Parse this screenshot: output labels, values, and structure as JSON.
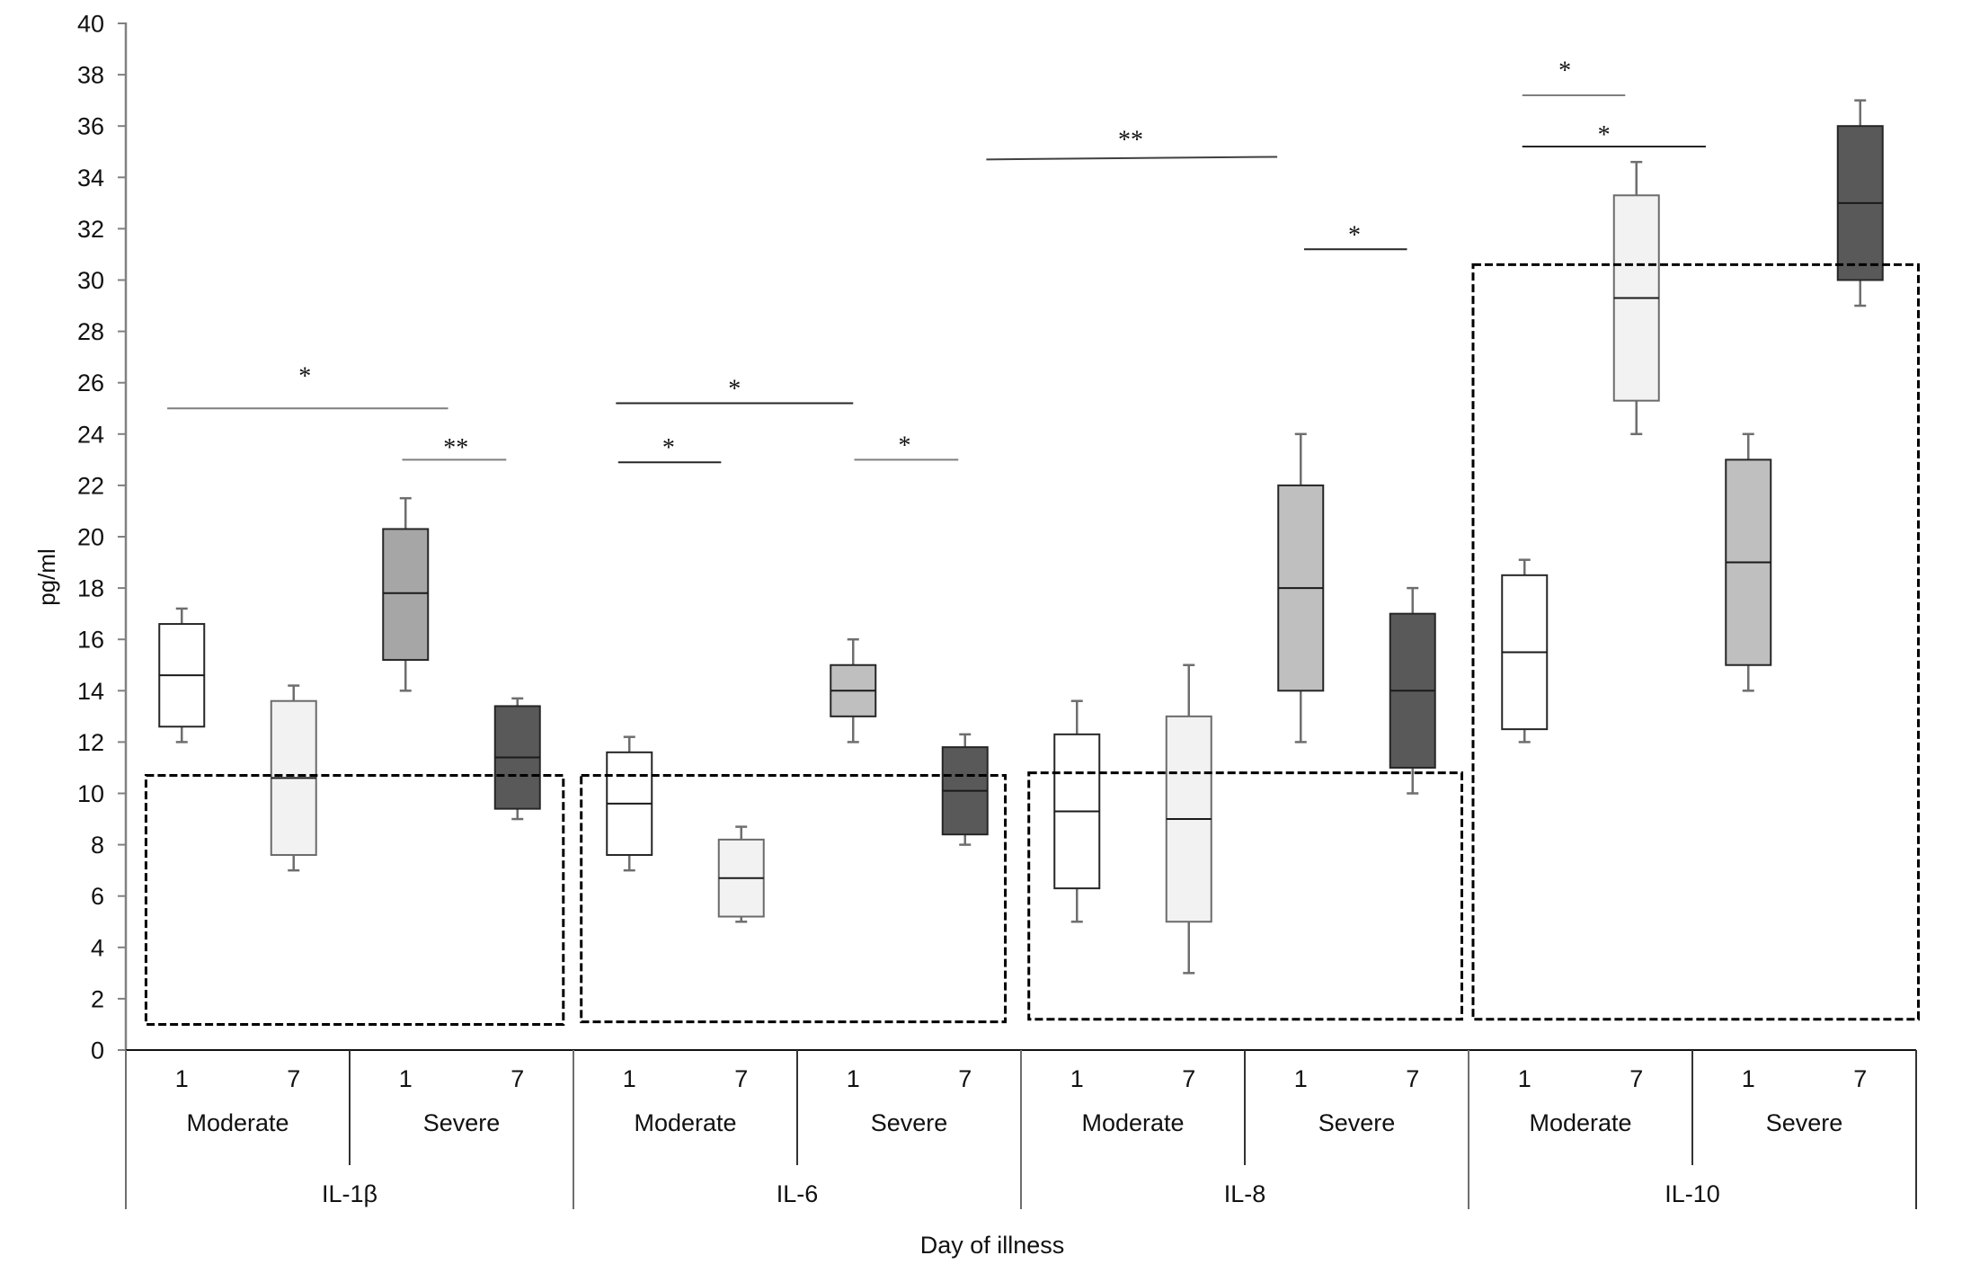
{
  "chart_data": {
    "type": "box",
    "title": "",
    "xlabel": "Day of illness",
    "ylabel": "pg/ml",
    "ylim": [
      0,
      40
    ],
    "yticks": [
      0,
      2,
      4,
      6,
      8,
      10,
      12,
      14,
      16,
      18,
      20,
      22,
      24,
      26,
      28,
      30,
      32,
      34,
      36,
      38,
      40
    ],
    "grid": false,
    "legend": "none",
    "groups": [
      {
        "label": "IL-1β",
        "subgroups": [
          {
            "label": "Moderate",
            "days": [
              "1",
              "7"
            ]
          },
          {
            "label": "Severe",
            "days": [
              "1",
              "7"
            ]
          }
        ]
      },
      {
        "label": "IL-6",
        "subgroups": [
          {
            "label": "Moderate",
            "days": [
              "1",
              "7"
            ]
          },
          {
            "label": "Severe",
            "days": [
              "1",
              "7"
            ]
          }
        ]
      },
      {
        "label": "IL-8",
        "subgroups": [
          {
            "label": "Moderate",
            "days": [
              "1",
              "7"
            ]
          },
          {
            "label": "Severe",
            "days": [
              "1",
              "7"
            ]
          }
        ]
      },
      {
        "label": "IL-10",
        "subgroups": [
          {
            "label": "Moderate",
            "days": [
              "1",
              "7"
            ]
          },
          {
            "label": "Severe",
            "days": [
              "1",
              "7"
            ]
          }
        ]
      }
    ],
    "boxes": [
      {
        "cytokine": "IL-1β",
        "severity": "Moderate",
        "day": "1",
        "min": 12.0,
        "q1": 12.6,
        "median": 14.6,
        "q3": 16.6,
        "max": 17.2,
        "fill": "#ffffff"
      },
      {
        "cytokine": "IL-1β",
        "severity": "Moderate",
        "day": "7",
        "min": 7.0,
        "q1": 7.6,
        "median": 10.6,
        "q3": 13.6,
        "max": 14.2,
        "fill": "#f2f2f2"
      },
      {
        "cytokine": "IL-1β",
        "severity": "Severe",
        "day": "1",
        "min": 14.0,
        "q1": 15.2,
        "median": 17.8,
        "q3": 20.3,
        "max": 21.5,
        "fill": "#a6a6a6"
      },
      {
        "cytokine": "IL-1β",
        "severity": "Severe",
        "day": "7",
        "min": 9.0,
        "q1": 9.4,
        "median": 11.4,
        "q3": 13.4,
        "max": 13.7,
        "fill": "#595959"
      },
      {
        "cytokine": "IL-6",
        "severity": "Moderate",
        "day": "1",
        "min": 7.0,
        "q1": 7.6,
        "median": 9.6,
        "q3": 11.6,
        "max": 12.2,
        "fill": "#ffffff"
      },
      {
        "cytokine": "IL-6",
        "severity": "Moderate",
        "day": "7",
        "min": 5.0,
        "q1": 5.2,
        "median": 6.7,
        "q3": 8.2,
        "max": 8.7,
        "fill": "#f2f2f2"
      },
      {
        "cytokine": "IL-6",
        "severity": "Severe",
        "day": "1",
        "min": 12.0,
        "q1": 13.0,
        "median": 14.0,
        "q3": 15.0,
        "max": 16.0,
        "fill": "#bfbfbf"
      },
      {
        "cytokine": "IL-6",
        "severity": "Severe",
        "day": "7",
        "min": 8.0,
        "q1": 8.4,
        "median": 10.1,
        "q3": 11.8,
        "max": 12.3,
        "fill": "#595959"
      },
      {
        "cytokine": "IL-8",
        "severity": "Moderate",
        "day": "1",
        "min": 5.0,
        "q1": 6.3,
        "median": 9.3,
        "q3": 12.3,
        "max": 13.6,
        "fill": "#ffffff"
      },
      {
        "cytokine": "IL-8",
        "severity": "Moderate",
        "day": "7",
        "min": 3.0,
        "q1": 5.0,
        "median": 9.0,
        "q3": 13.0,
        "max": 15.0,
        "fill": "#f2f2f2"
      },
      {
        "cytokine": "IL-8",
        "severity": "Severe",
        "day": "1",
        "min": 12.0,
        "q1": 14.0,
        "median": 18.0,
        "q3": 22.0,
        "max": 24.0,
        "fill": "#bfbfbf"
      },
      {
        "cytokine": "IL-8",
        "severity": "Severe",
        "day": "7",
        "min": 10.0,
        "q1": 11.0,
        "median": 14.0,
        "q3": 17.0,
        "max": 18.0,
        "fill": "#595959"
      },
      {
        "cytokine": "IL-10",
        "severity": "Moderate",
        "day": "1",
        "min": 12.0,
        "q1": 12.5,
        "median": 15.5,
        "q3": 18.5,
        "max": 19.1,
        "fill": "#ffffff"
      },
      {
        "cytokine": "IL-10",
        "severity": "Moderate",
        "day": "7",
        "min": 24.0,
        "q1": 25.3,
        "median": 29.3,
        "q3": 33.3,
        "max": 34.6,
        "fill": "#f2f2f2"
      },
      {
        "cytokine": "IL-10",
        "severity": "Severe",
        "day": "1",
        "min": 14.0,
        "q1": 15.0,
        "median": 19.0,
        "q3": 23.0,
        "max": 24.0,
        "fill": "#bfbfbf"
      },
      {
        "cytokine": "IL-10",
        "severity": "Severe",
        "day": "7",
        "min": 29.0,
        "q1": 30.0,
        "median": 33.0,
        "q3": 36.0,
        "max": 37.0,
        "fill": "#595959"
      }
    ],
    "significance": [
      {
        "label": "*",
        "y": 25.0,
        "x_range": [
          -0.13,
          2.38
        ],
        "label_x": 1.1,
        "label_y": 26.4,
        "color": "#7f7f7f"
      },
      {
        "label": "**",
        "y": 23.0,
        "x_range": [
          1.97,
          2.9
        ],
        "label_x": 2.45,
        "label_y": 23.6,
        "color": "#7f7f7f"
      },
      {
        "label": "*",
        "y": 25.2,
        "x_range": [
          3.88,
          6.0
        ],
        "label_x": 4.94,
        "label_y": 25.9,
        "color": "#262626"
      },
      {
        "label": "*",
        "y": 22.9,
        "x_range": [
          3.9,
          4.82
        ],
        "label_x": 4.35,
        "label_y": 23.6,
        "color": "#262626"
      },
      {
        "label": "*",
        "y": 23.0,
        "x_range": [
          6.01,
          6.94
        ],
        "label_x": 6.46,
        "label_y": 23.7,
        "color": "#7f7f7f"
      },
      {
        "label": "**",
        "y": 34.7,
        "y_end": 34.8,
        "x_range": [
          7.19,
          9.79
        ],
        "label_x": 8.48,
        "label_y": 35.6,
        "color": "#404040"
      },
      {
        "label": "*",
        "y": 31.2,
        "x_range": [
          10.03,
          10.95
        ],
        "label_x": 10.48,
        "label_y": 31.9,
        "color": "#262626"
      },
      {
        "label": "*",
        "y": 37.2,
        "x_range": [
          11.98,
          12.9
        ],
        "label_x": 12.36,
        "label_y": 38.3,
        "color": "#7f7f7f"
      },
      {
        "label": "*",
        "y": 35.2,
        "x_range": [
          11.98,
          13.62
        ],
        "label_x": 12.71,
        "label_y": 35.8,
        "color": "#262626"
      }
    ],
    "reference_ranges": [
      {
        "cytokine": "IL-1β",
        "y_range": [
          1.0,
          10.7
        ],
        "x_range": [
          -0.32,
          3.41
        ]
      },
      {
        "cytokine": "IL-6",
        "y_range": [
          1.1,
          10.7
        ],
        "x_range": [
          3.57,
          7.36
        ]
      },
      {
        "cytokine": "IL-8",
        "y_range": [
          1.2,
          10.8
        ],
        "x_range": [
          7.57,
          11.44
        ]
      },
      {
        "cytokine": "IL-10",
        "y_range": [
          1.2,
          30.6
        ],
        "x_range": [
          11.54,
          15.52
        ]
      }
    ]
  }
}
